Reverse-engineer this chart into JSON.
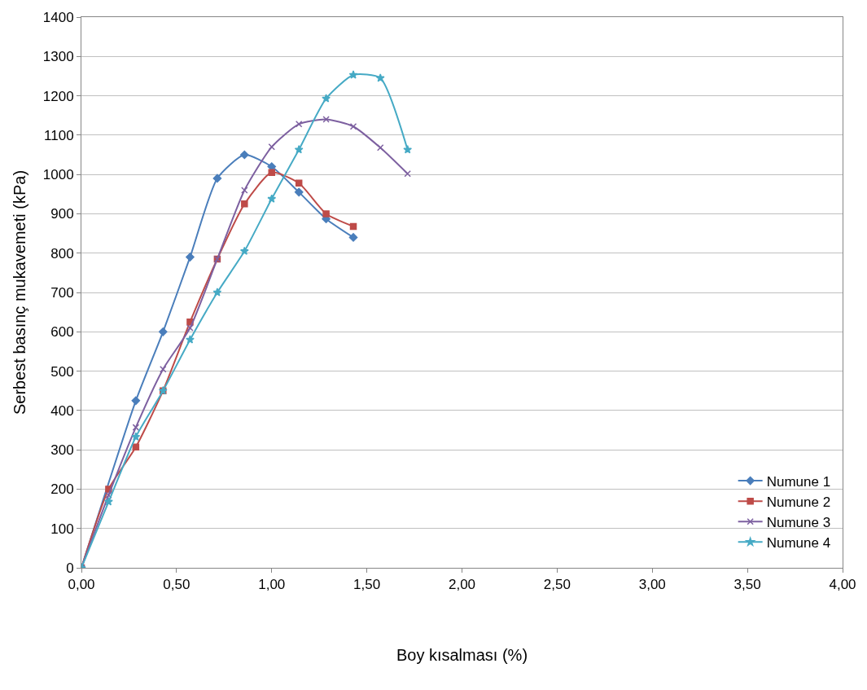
{
  "chart_data": {
    "type": "line",
    "xlabel": "Boy kısalması (%)",
    "ylabel": "Serbest basınç mukavemeti (kPa)",
    "xlim": [
      0,
      4
    ],
    "ylim": [
      0,
      1400
    ],
    "xticks": [
      {
        "value": 0,
        "label": "0,00"
      },
      {
        "value": 0.5,
        "label": "0,50"
      },
      {
        "value": 1,
        "label": "1,00"
      },
      {
        "value": 1.5,
        "label": "1,50"
      },
      {
        "value": 2,
        "label": "2,00"
      },
      {
        "value": 2.5,
        "label": "2,50"
      },
      {
        "value": 3,
        "label": "3,00"
      },
      {
        "value": 3.5,
        "label": "3,50"
      },
      {
        "value": 4,
        "label": "4,00"
      }
    ],
    "yticks": [
      0,
      100,
      200,
      300,
      400,
      500,
      600,
      700,
      800,
      900,
      1000,
      1100,
      1200,
      1300,
      1400
    ],
    "grid": "y",
    "legend": "bottom right",
    "series": [
      {
        "name": "Numune 1",
        "color": "#4a7ebb",
        "marker": "diamond",
        "x": [
          0,
          0.143,
          0.286,
          0.429,
          0.571,
          0.714,
          0.857,
          1.0,
          1.143,
          1.286,
          1.429
        ],
        "values": [
          0,
          null,
          425,
          600,
          790,
          990,
          1050,
          1020,
          955,
          887,
          840
        ]
      },
      {
        "name": "Numune 2",
        "color": "#be4b48",
        "marker": "square",
        "x": [
          0,
          0.143,
          0.286,
          0.429,
          0.571,
          0.714,
          0.857,
          1.0,
          1.143,
          1.286,
          1.429
        ],
        "values": [
          0,
          200,
          307,
          450,
          625,
          785,
          925,
          1005,
          978,
          900,
          868
        ]
      },
      {
        "name": "Numune 3",
        "color": "#7d60a0",
        "marker": "cross",
        "x": [
          0,
          0.143,
          0.286,
          0.429,
          0.571,
          0.714,
          0.857,
          1.0,
          1.143,
          1.286,
          1.429,
          1.571,
          1.714
        ],
        "values": [
          0,
          185,
          357,
          505,
          610,
          785,
          960,
          1070,
          1128,
          1140,
          1122,
          1068,
          1002
        ]
      },
      {
        "name": "Numune 4",
        "color": "#46aac5",
        "marker": "star",
        "x": [
          0,
          0.143,
          0.286,
          0.429,
          0.571,
          0.714,
          0.857,
          1.0,
          1.143,
          1.286,
          1.429,
          1.571,
          1.714
        ],
        "values": [
          0,
          168,
          333,
          450,
          580,
          700,
          805,
          938,
          1063,
          1193,
          1253,
          1245,
          1063
        ]
      }
    ]
  }
}
